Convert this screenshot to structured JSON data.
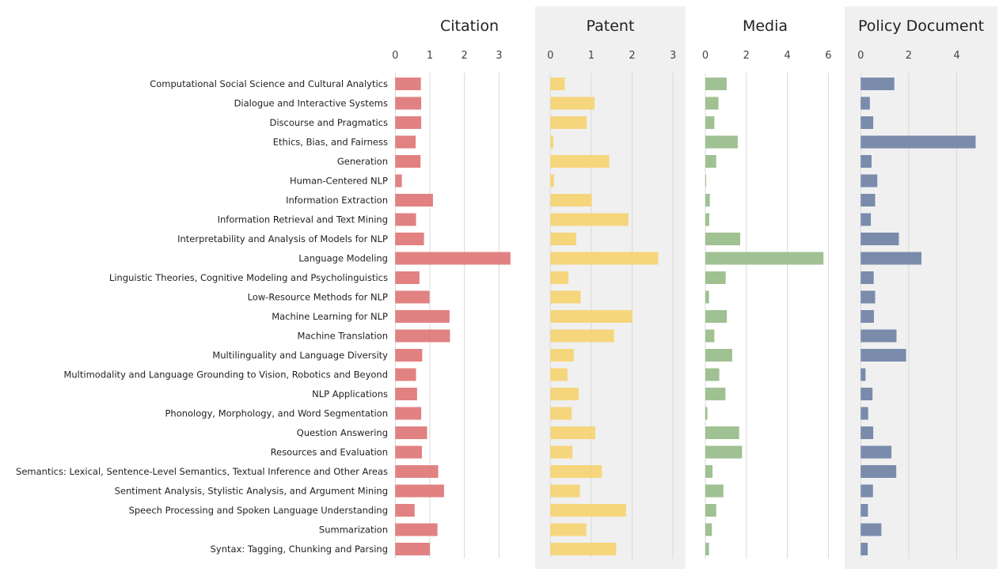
{
  "chart_data": {
    "type": "bar",
    "orientation": "horizontal",
    "grid": true,
    "categories": [
      "Computational Social Science and Cultural Analytics",
      "Dialogue and Interactive Systems",
      "Discourse and Pragmatics",
      "Ethics, Bias, and Fairness",
      "Generation",
      "Human-Centered NLP",
      "Information Extraction",
      "Information Retrieval and Text Mining",
      "Interpretability and Analysis of Models for NLP",
      "Language Modeling",
      "Linguistic Theories, Cognitive Modeling and Psycholinguistics",
      "Low-Resource Methods for NLP",
      "Machine Learning for NLP",
      "Machine Translation",
      "Multilinguality and Language Diversity",
      "Multimodality and Language Grounding to Vision, Robotics and Beyond",
      "NLP Applications",
      "Phonology, Morphology, and Word Segmentation",
      "Question Answering",
      "Resources and Evaluation",
      "Semantics: Lexical, Sentence-Level Semantics, Textual Inference and Other Areas",
      "Sentiment Analysis, Stylistic Analysis, and Argument Mining",
      "Speech Processing and Spoken Language Understanding",
      "Summarization",
      "Syntax: Tagging, Chunking and Parsing"
    ],
    "panels": [
      {
        "title": "Citation",
        "color": "#e07a7a",
        "shaded": false,
        "xlim": [
          0,
          3.5
        ],
        "ticks": [
          0,
          1,
          2,
          3
        ],
        "values": [
          0.74,
          0.75,
          0.75,
          0.59,
          0.73,
          0.19,
          1.09,
          0.6,
          0.83,
          3.33,
          0.7,
          0.99,
          1.57,
          1.58,
          0.78,
          0.6,
          0.63,
          0.75,
          0.92,
          0.77,
          1.24,
          1.41,
          0.56,
          1.22,
          1.0
        ]
      },
      {
        "title": "Patent",
        "color": "#f5d475",
        "shaded": true,
        "xlim": [
          0,
          3.2
        ],
        "ticks": [
          0,
          1,
          2,
          3
        ],
        "values": [
          0.35,
          1.08,
          0.89,
          0.07,
          1.44,
          0.09,
          1.01,
          1.91,
          0.63,
          2.64,
          0.44,
          0.74,
          2.01,
          1.56,
          0.57,
          0.42,
          0.69,
          0.52,
          1.1,
          0.54,
          1.26,
          0.72,
          1.85,
          0.88,
          1.61
        ]
      },
      {
        "title": "Media",
        "color": "#9bbe8c",
        "shaded": false,
        "xlim": [
          0,
          6.5
        ],
        "ticks": [
          0,
          2,
          4,
          6
        ],
        "values": [
          1.04,
          0.64,
          0.44,
          1.58,
          0.53,
          0.04,
          0.22,
          0.19,
          1.7,
          5.76,
          0.99,
          0.18,
          1.05,
          0.44,
          1.31,
          0.68,
          0.98,
          0.1,
          1.65,
          1.79,
          0.35,
          0.88,
          0.53,
          0.32,
          0.18
        ]
      },
      {
        "title": "Policy Document",
        "color": "#7385a8",
        "shaded": true,
        "xlim": [
          0,
          5.5
        ],
        "ticks": [
          0,
          2,
          4
        ],
        "values": [
          1.4,
          0.38,
          0.52,
          4.79,
          0.45,
          0.69,
          0.6,
          0.42,
          1.59,
          2.53,
          0.54,
          0.6,
          0.55,
          1.49,
          1.89,
          0.2,
          0.49,
          0.31,
          0.52,
          1.28,
          1.48,
          0.51,
          0.3,
          0.86,
          0.29
        ]
      }
    ]
  }
}
